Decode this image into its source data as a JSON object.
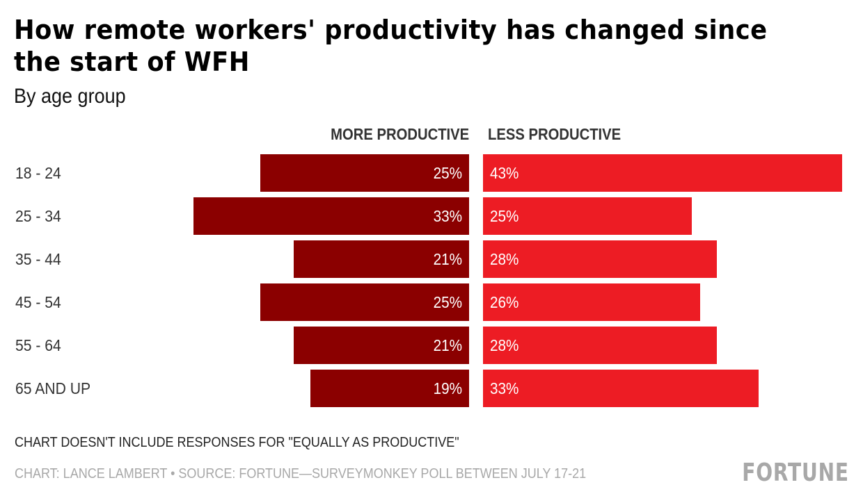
{
  "header": {
    "title": "How remote workers' productivity has changed since the start of WFH",
    "subtitle": "By age group"
  },
  "columns": {
    "more": "MORE PRODUCTIVE",
    "less": "LESS PRODUCTIVE"
  },
  "colors": {
    "more": "#8b0000",
    "less": "#ed1c24"
  },
  "footer": {
    "note": "CHART DOESN'T INCLUDE RESPONSES FOR \"EQUALLY AS PRODUCTIVE\"",
    "credit": "CHART: LANCE LAMBERT • SOURCE: FORTUNE—SURVEYMONKEY POLL BETWEEN JULY 17-21",
    "logo": "FORTUNE"
  },
  "chart_data": {
    "type": "bar",
    "orientation": "horizontal-diverging",
    "title": "How remote workers' productivity has changed since the start of WFH",
    "subtitle": "By age group",
    "categories": [
      "18 - 24",
      "25 - 34",
      "35 - 44",
      "45 - 54",
      "55 - 64",
      "65 AND UP"
    ],
    "series": [
      {
        "name": "MORE PRODUCTIVE",
        "values": [
          25,
          33,
          21,
          25,
          21,
          19
        ],
        "labels": [
          "25%",
          "33%",
          "21%",
          "25%",
          "21%",
          "19%"
        ]
      },
      {
        "name": "LESS PRODUCTIVE",
        "values": [
          43,
          25,
          28,
          26,
          28,
          33
        ],
        "labels": [
          "43%",
          "25%",
          "28%",
          "26%",
          "28%",
          "33%"
        ]
      }
    ],
    "unit": "%",
    "xlabel": "",
    "ylabel": "",
    "grid": false,
    "legend": "top-center column headers"
  }
}
